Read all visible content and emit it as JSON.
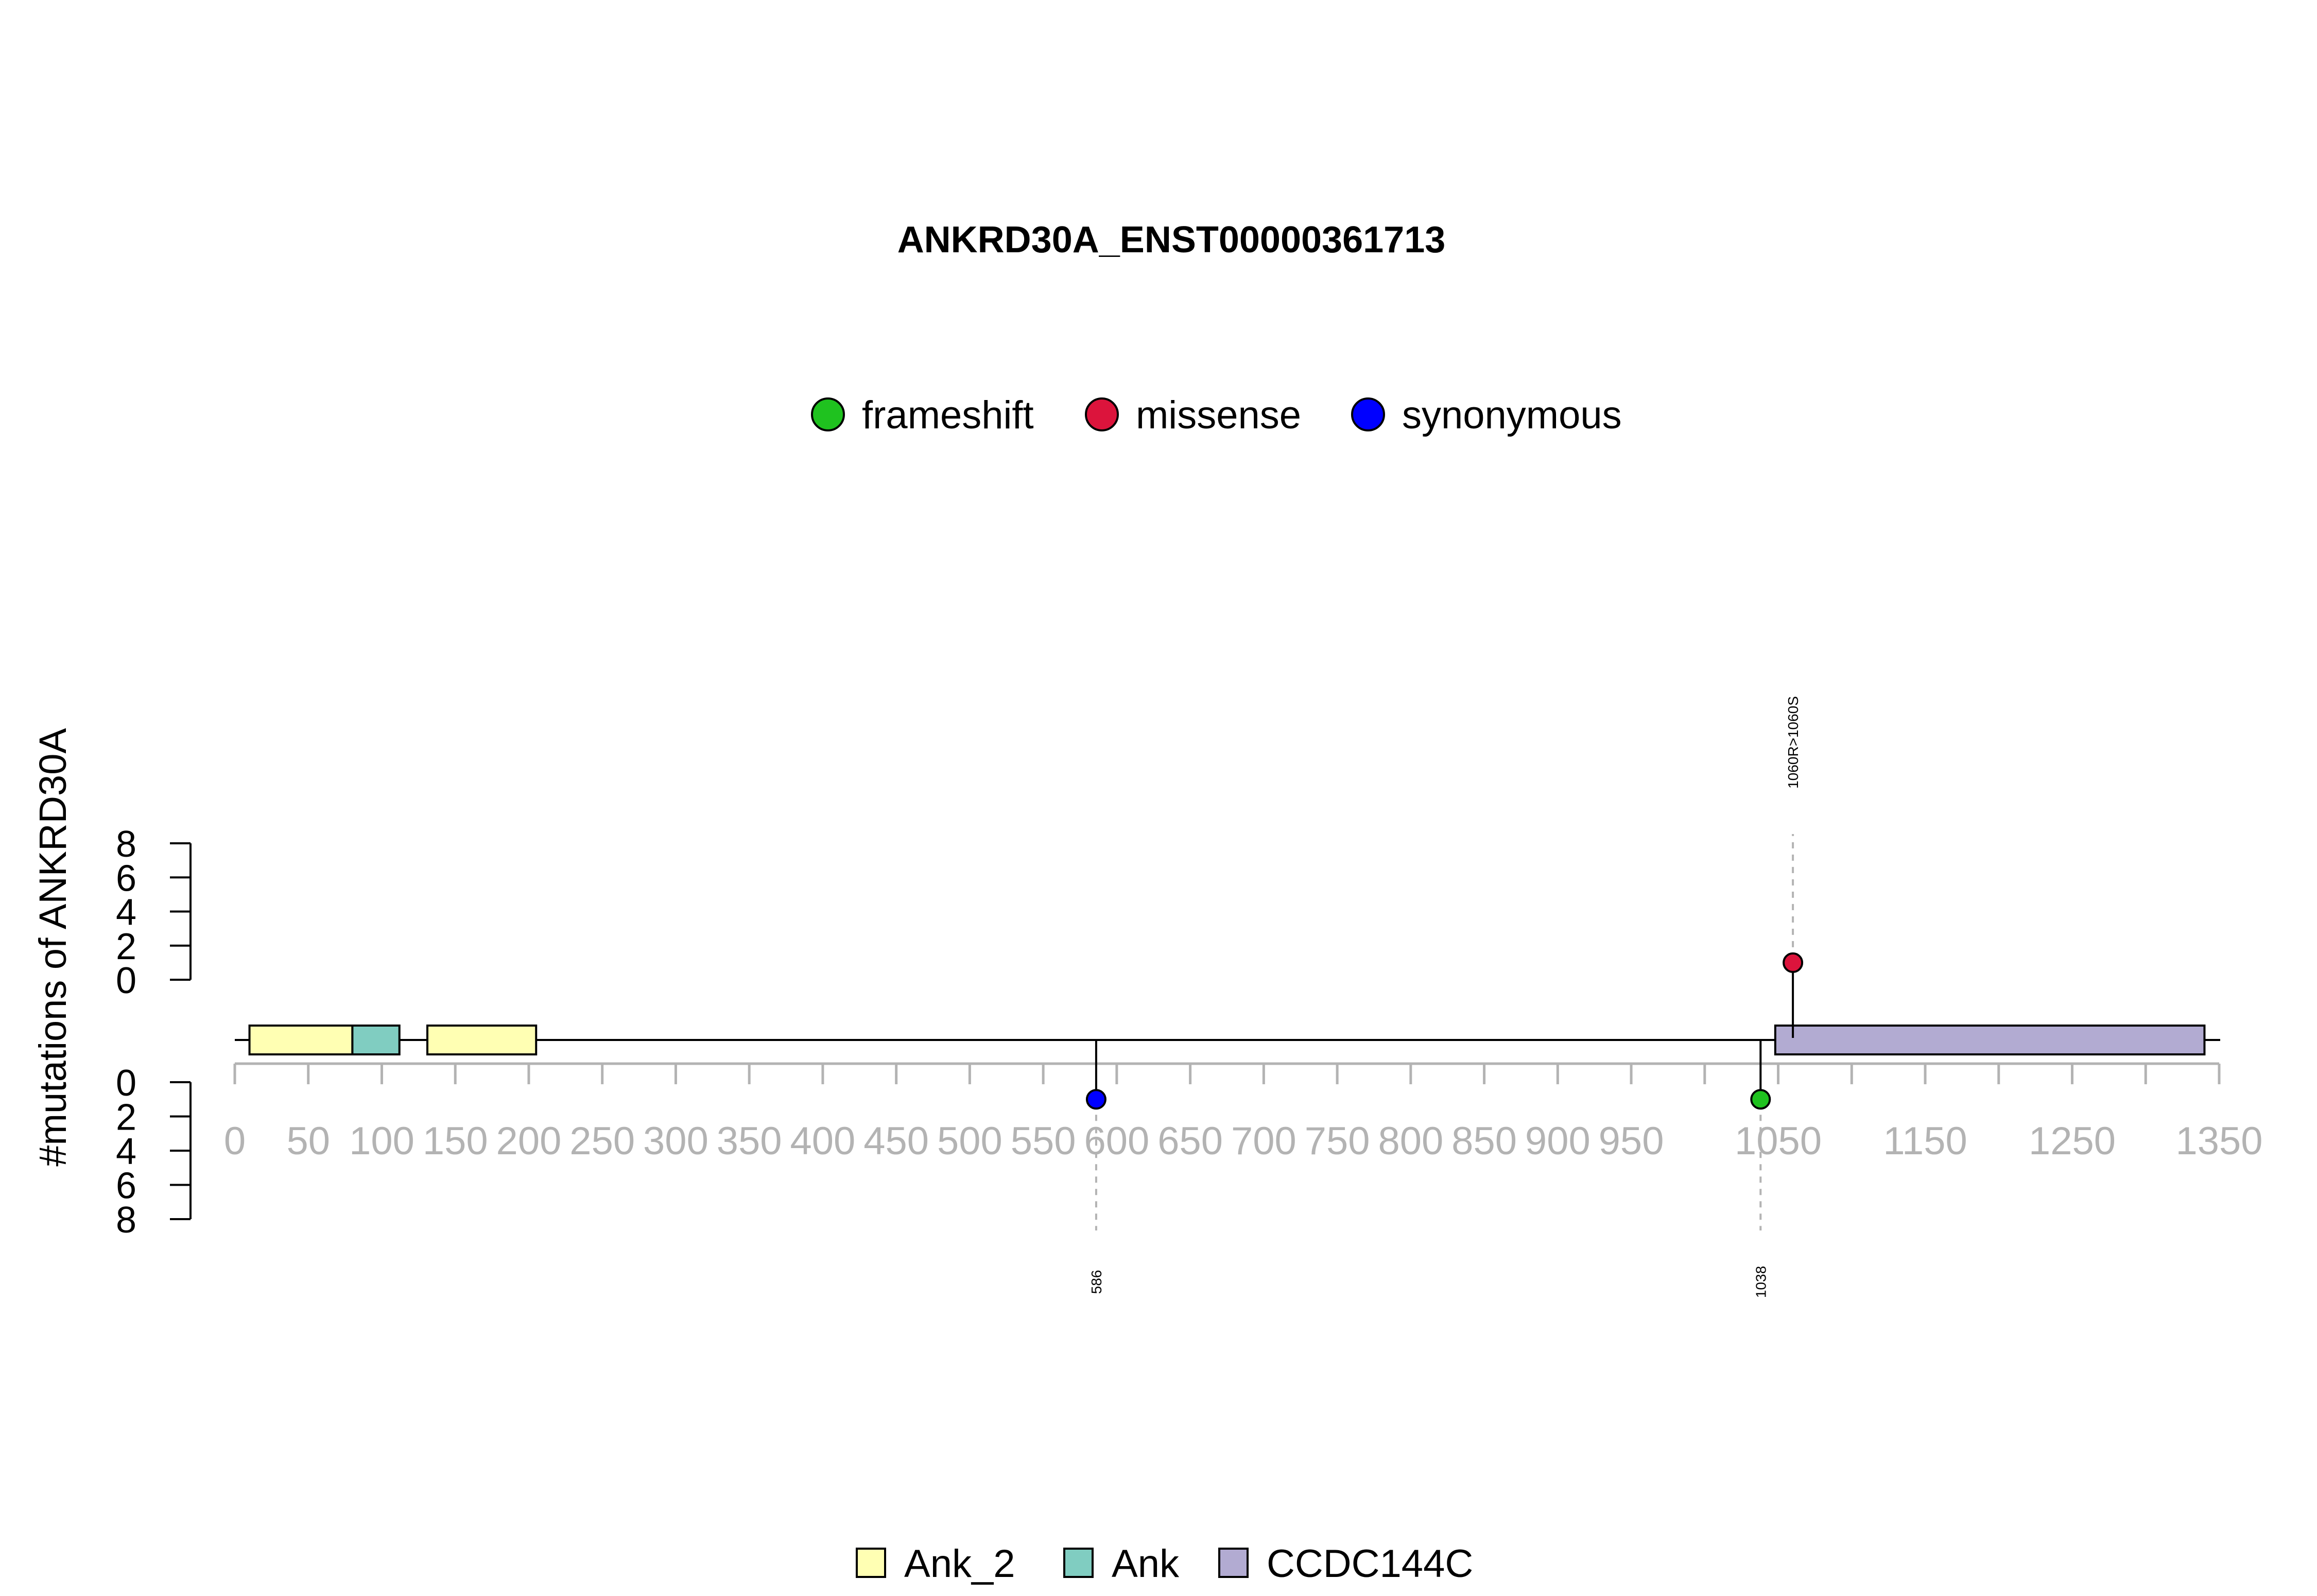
{
  "chart_data": {
    "type": "lollipop",
    "title": "ANKRD30A_ENST00000361713",
    "ylabel": "#mutations of ANKRD30A",
    "protein_length": 1350,
    "x_ticks": [
      0,
      50,
      100,
      150,
      200,
      250,
      300,
      350,
      400,
      450,
      500,
      550,
      600,
      650,
      700,
      750,
      800,
      850,
      900,
      950,
      1050,
      1150,
      1250,
      1350
    ],
    "x_minor_ticks": [
      1000,
      1100,
      1200,
      1300
    ],
    "y_ticks_upper": [
      0,
      2,
      4,
      6,
      8
    ],
    "y_ticks_lower": [
      0,
      2,
      4,
      6,
      8
    ],
    "ylim": [
      0,
      8
    ],
    "mutation_types": [
      {
        "name": "frameshift",
        "color": "#1fc21f"
      },
      {
        "name": "missense",
        "color": "#dc143c"
      },
      {
        "name": "synonymous",
        "color": "#0000ff"
      }
    ],
    "mutations": [
      {
        "position": 1060,
        "count": 1,
        "type": "missense",
        "side": "upper",
        "label": "1060R>1060S"
      },
      {
        "position": 586,
        "count": 1,
        "type": "synonymous",
        "side": "lower",
        "label": "586"
      },
      {
        "position": 1038,
        "count": 1,
        "type": "frameshift",
        "side": "lower",
        "label": "1038"
      }
    ],
    "domain_legend": [
      {
        "name": "Ank_2",
        "color": "#ffffb3"
      },
      {
        "name": "Ank",
        "color": "#80cdc1"
      },
      {
        "name": "CCDC144C",
        "color": "#b2abd2"
      }
    ],
    "domains": [
      {
        "name": "Ank_2",
        "start": 10,
        "end": 80
      },
      {
        "name": "Ank",
        "start": 80,
        "end": 112
      },
      {
        "name": "Ank_2",
        "start": 131,
        "end": 205
      },
      {
        "name": "CCDC144C",
        "start": 1048,
        "end": 1340
      }
    ]
  }
}
